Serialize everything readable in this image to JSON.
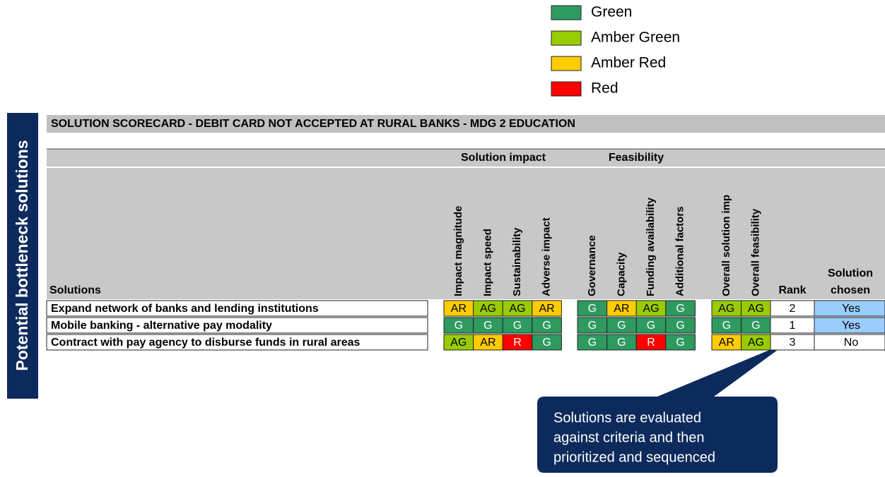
{
  "legend": [
    {
      "label": "Green",
      "color": "#2e9a60"
    },
    {
      "label": "Amber Green",
      "color": "#99cc00"
    },
    {
      "label": "Amber Red",
      "color": "#ffcc00"
    },
    {
      "label": "Red",
      "color": "#ff0000"
    }
  ],
  "rating_colors": {
    "G": "#2e9a60",
    "AG": "#99cc00",
    "AR": "#ffcc00",
    "R": "#ff0000"
  },
  "side_label": "Potential bottleneck solutions",
  "title": "SOLUTION SCORECARD - DEBIT CARD NOT ACCEPTED AT RURAL BANKS - MDG 2 EDUCATION",
  "groups": [
    "Solution impact",
    "Feasibility"
  ],
  "columns": {
    "solutions": "Solutions",
    "impact": [
      "Impact magnitude",
      "Impact speed",
      "Sustainability",
      "Adverse impact"
    ],
    "feasibility": [
      "Governance",
      "Capacity",
      "Funding availability",
      "Additional factors"
    ],
    "overall": [
      "Overall solution imp",
      "Overall feasibility"
    ],
    "rank": "Rank",
    "chosen": [
      "Solution",
      "chosen"
    ]
  },
  "chosen_colors": {
    "Yes": "#99ccff",
    "No": "#ffffff"
  },
  "rows": [
    {
      "name": "Expand network of banks and lending institutions",
      "impact": [
        "AR",
        "AG",
        "AG",
        "AR"
      ],
      "feasibility": [
        "G",
        "AR",
        "AG",
        "G"
      ],
      "overall": [
        "AG",
        "AG"
      ],
      "rank": "2",
      "chosen": "Yes"
    },
    {
      "name": "Mobile banking - alternative pay modality",
      "impact": [
        "G",
        "G",
        "G",
        "G"
      ],
      "feasibility": [
        "G",
        "G",
        "G",
        "G"
      ],
      "overall": [
        "G",
        "G"
      ],
      "rank": "1",
      "chosen": "Yes"
    },
    {
      "name": "Contract with pay agency to disburse funds in rural areas",
      "impact": [
        "AG",
        "AR",
        "R",
        "G"
      ],
      "feasibility": [
        "G",
        "G",
        "R",
        "G"
      ],
      "overall": [
        "AR",
        "AG"
      ],
      "rank": "3",
      "chosen": "No"
    }
  ],
  "callout": [
    "Solutions are evaluated",
    "against criteria and then",
    "prioritized and sequenced"
  ]
}
